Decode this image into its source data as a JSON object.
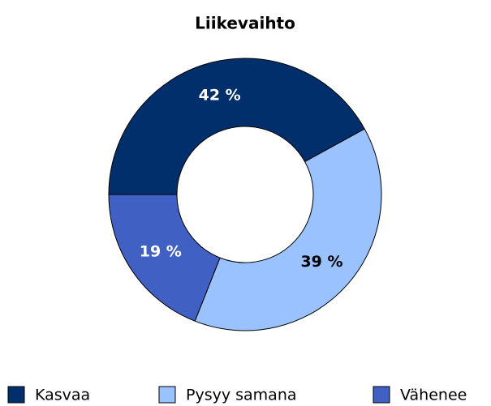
{
  "chart_data": {
    "type": "donut",
    "title": "Liikevaihto",
    "categories": [
      "Kasvaa",
      "Pysyy samana",
      "Vähenee"
    ],
    "values": [
      42,
      39,
      19
    ],
    "value_labels": [
      "42 %",
      "39 %",
      "19 %"
    ],
    "colors": [
      "#002f6c",
      "#99c2ff",
      "#4060c4"
    ],
    "legend": "bottom"
  }
}
